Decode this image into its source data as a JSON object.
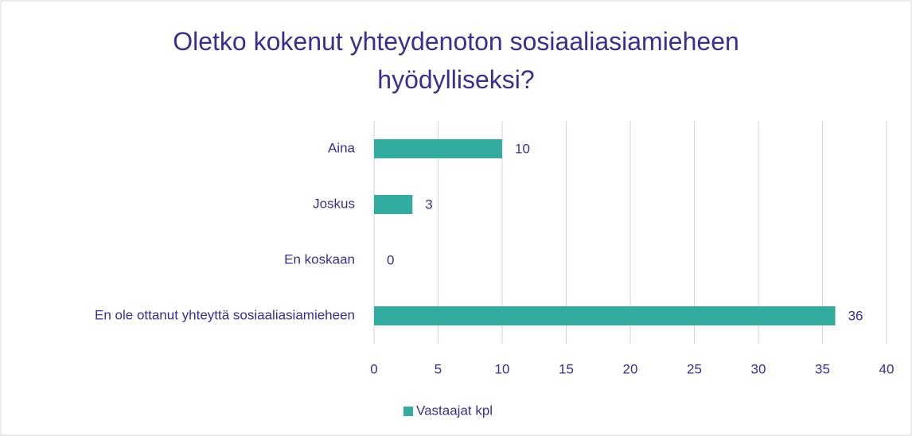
{
  "chart_data": {
    "type": "bar",
    "orientation": "horizontal",
    "title": "Oletko kokenut yhteydenoton sosiaaliasiamieheen hyödylliseksi?",
    "categories": [
      "Aina",
      "Joskus",
      "En koskaan",
      "En ole ottanut yhteyttä sosiaaliasiamieheen"
    ],
    "series": [
      {
        "name": "Vastaajat kpl",
        "color": "#33aca0",
        "values": [
          10,
          3,
          0,
          36
        ]
      }
    ],
    "xlim": [
      0,
      40
    ],
    "xticks": [
      0,
      5,
      10,
      15,
      20,
      25,
      30,
      35,
      40
    ],
    "grid": true,
    "legend": "bottom"
  }
}
